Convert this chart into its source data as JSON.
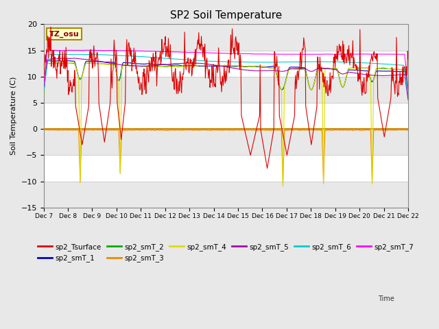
{
  "title": "SP2 Soil Temperature",
  "ylabel": "Soil Temperature (C)",
  "xlabel": "Time",
  "annotation": "TZ_osu",
  "ylim": [
    -15,
    20
  ],
  "yticks": [
    -15,
    -10,
    -5,
    0,
    5,
    10,
    15,
    20
  ],
  "hline_y": 0,
  "hline_color": "#CC8800",
  "plot_bg_color": "#ffffff",
  "fig_bg_color": "#e8e8e8",
  "series_colors": {
    "sp2_Tsurface": "#dd0000",
    "sp2_smT_1": "#0000cc",
    "sp2_smT_2": "#00aa00",
    "sp2_smT_3": "#ee8800",
    "sp2_smT_4": "#dddd00",
    "sp2_smT_5": "#aa00aa",
    "sp2_smT_6": "#00cccc",
    "sp2_smT_7": "#ff00ff"
  },
  "xticklabels": [
    "Dec 7",
    "Dec 8",
    "Dec 9",
    "Dec 10",
    "Dec 11",
    "Dec 12",
    "Dec 13",
    "Dec 14",
    "Dec 15",
    "Dec 16",
    "Dec 17",
    "Dec 18",
    "Dec 19",
    "Dec 20",
    "Dec 21",
    "Dec 22"
  ],
  "num_points": 720,
  "band_colors": [
    "#e8e8e8",
    "#ffffff"
  ],
  "grid_color": "#cccccc"
}
